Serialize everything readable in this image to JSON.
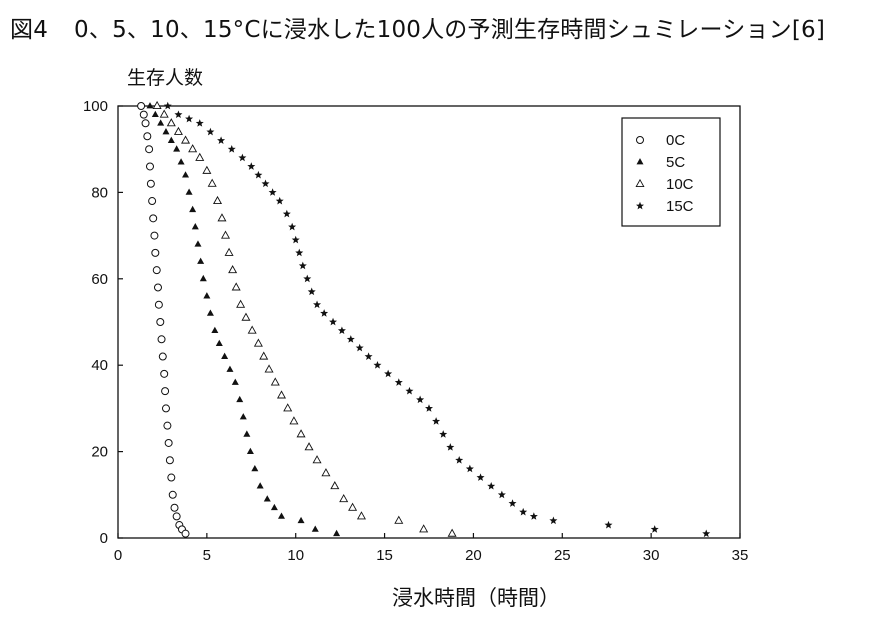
{
  "figure": {
    "number": "図4",
    "caption": "0、5、10、15°Cに浸水した100人の予測生存時間シュミレーション[6]"
  },
  "chart_data": {
    "type": "scatter",
    "xlabel": "浸水時間（時間）",
    "ylabel": "生存人数",
    "xlim": [
      0,
      35
    ],
    "ylim": [
      0,
      100
    ],
    "xticks": [
      0,
      5,
      10,
      15,
      20,
      25,
      30,
      35
    ],
    "yticks": [
      0,
      20,
      40,
      60,
      80,
      100
    ],
    "grid": false,
    "legend_position": "top-right",
    "series": [
      {
        "name": "0C",
        "marker": "circle-open",
        "points": [
          [
            1.3,
            100
          ],
          [
            1.45,
            98
          ],
          [
            1.55,
            96
          ],
          [
            1.65,
            93
          ],
          [
            1.75,
            90
          ],
          [
            1.8,
            86
          ],
          [
            1.85,
            82
          ],
          [
            1.92,
            78
          ],
          [
            1.98,
            74
          ],
          [
            2.05,
            70
          ],
          [
            2.1,
            66
          ],
          [
            2.18,
            62
          ],
          [
            2.25,
            58
          ],
          [
            2.3,
            54
          ],
          [
            2.38,
            50
          ],
          [
            2.45,
            46
          ],
          [
            2.52,
            42
          ],
          [
            2.6,
            38
          ],
          [
            2.65,
            34
          ],
          [
            2.7,
            30
          ],
          [
            2.78,
            26
          ],
          [
            2.85,
            22
          ],
          [
            2.92,
            18
          ],
          [
            3.0,
            14
          ],
          [
            3.08,
            10
          ],
          [
            3.18,
            7
          ],
          [
            3.3,
            5
          ],
          [
            3.45,
            3
          ],
          [
            3.6,
            2
          ],
          [
            3.8,
            1
          ]
        ]
      },
      {
        "name": "5C",
        "marker": "triangle-filled",
        "points": [
          [
            1.8,
            100
          ],
          [
            2.1,
            98
          ],
          [
            2.4,
            96
          ],
          [
            2.7,
            94
          ],
          [
            3.0,
            92
          ],
          [
            3.3,
            90
          ],
          [
            3.55,
            87
          ],
          [
            3.8,
            84
          ],
          [
            4.0,
            80
          ],
          [
            4.2,
            76
          ],
          [
            4.35,
            72
          ],
          [
            4.5,
            68
          ],
          [
            4.65,
            64
          ],
          [
            4.8,
            60
          ],
          [
            5.0,
            56
          ],
          [
            5.2,
            52
          ],
          [
            5.45,
            48
          ],
          [
            5.7,
            45
          ],
          [
            6.0,
            42
          ],
          [
            6.3,
            39
          ],
          [
            6.6,
            36
          ],
          [
            6.85,
            32
          ],
          [
            7.05,
            28
          ],
          [
            7.25,
            24
          ],
          [
            7.45,
            20
          ],
          [
            7.7,
            16
          ],
          [
            8.0,
            12
          ],
          [
            8.4,
            9
          ],
          [
            8.8,
            7
          ],
          [
            9.2,
            5
          ],
          [
            10.3,
            4
          ],
          [
            11.1,
            2
          ],
          [
            12.3,
            1
          ]
        ]
      },
      {
        "name": "10C",
        "marker": "triangle-open",
        "points": [
          [
            2.2,
            100
          ],
          [
            2.6,
            98
          ],
          [
            3.0,
            96
          ],
          [
            3.4,
            94
          ],
          [
            3.8,
            92
          ],
          [
            4.2,
            90
          ],
          [
            4.6,
            88
          ],
          [
            5.0,
            85
          ],
          [
            5.3,
            82
          ],
          [
            5.6,
            78
          ],
          [
            5.85,
            74
          ],
          [
            6.05,
            70
          ],
          [
            6.25,
            66
          ],
          [
            6.45,
            62
          ],
          [
            6.65,
            58
          ],
          [
            6.9,
            54
          ],
          [
            7.2,
            51
          ],
          [
            7.55,
            48
          ],
          [
            7.9,
            45
          ],
          [
            8.2,
            42
          ],
          [
            8.5,
            39
          ],
          [
            8.85,
            36
          ],
          [
            9.2,
            33
          ],
          [
            9.55,
            30
          ],
          [
            9.9,
            27
          ],
          [
            10.3,
            24
          ],
          [
            10.75,
            21
          ],
          [
            11.2,
            18
          ],
          [
            11.7,
            15
          ],
          [
            12.2,
            12
          ],
          [
            12.7,
            9
          ],
          [
            13.2,
            7
          ],
          [
            13.7,
            5
          ],
          [
            15.8,
            4
          ],
          [
            17.2,
            2
          ],
          [
            18.8,
            1
          ]
        ]
      },
      {
        "name": "15C",
        "marker": "star-filled",
        "points": [
          [
            2.8,
            100
          ],
          [
            3.4,
            98
          ],
          [
            4.0,
            97
          ],
          [
            4.6,
            96
          ],
          [
            5.2,
            94
          ],
          [
            5.8,
            92
          ],
          [
            6.4,
            90
          ],
          [
            7.0,
            88
          ],
          [
            7.5,
            86
          ],
          [
            7.9,
            84
          ],
          [
            8.3,
            82
          ],
          [
            8.7,
            80
          ],
          [
            9.1,
            78
          ],
          [
            9.5,
            75
          ],
          [
            9.8,
            72
          ],
          [
            10.0,
            69
          ],
          [
            10.2,
            66
          ],
          [
            10.4,
            63
          ],
          [
            10.65,
            60
          ],
          [
            10.9,
            57
          ],
          [
            11.2,
            54
          ],
          [
            11.6,
            52
          ],
          [
            12.1,
            50
          ],
          [
            12.6,
            48
          ],
          [
            13.1,
            46
          ],
          [
            13.6,
            44
          ],
          [
            14.1,
            42
          ],
          [
            14.6,
            40
          ],
          [
            15.2,
            38
          ],
          [
            15.8,
            36
          ],
          [
            16.4,
            34
          ],
          [
            17.0,
            32
          ],
          [
            17.5,
            30
          ],
          [
            17.9,
            27
          ],
          [
            18.3,
            24
          ],
          [
            18.7,
            21
          ],
          [
            19.2,
            18
          ],
          [
            19.8,
            16
          ],
          [
            20.4,
            14
          ],
          [
            21.0,
            12
          ],
          [
            21.6,
            10
          ],
          [
            22.2,
            8
          ],
          [
            22.8,
            6
          ],
          [
            23.4,
            5
          ],
          [
            24.5,
            4
          ],
          [
            27.6,
            3
          ],
          [
            30.2,
            2
          ],
          [
            33.1,
            1
          ]
        ]
      }
    ]
  }
}
